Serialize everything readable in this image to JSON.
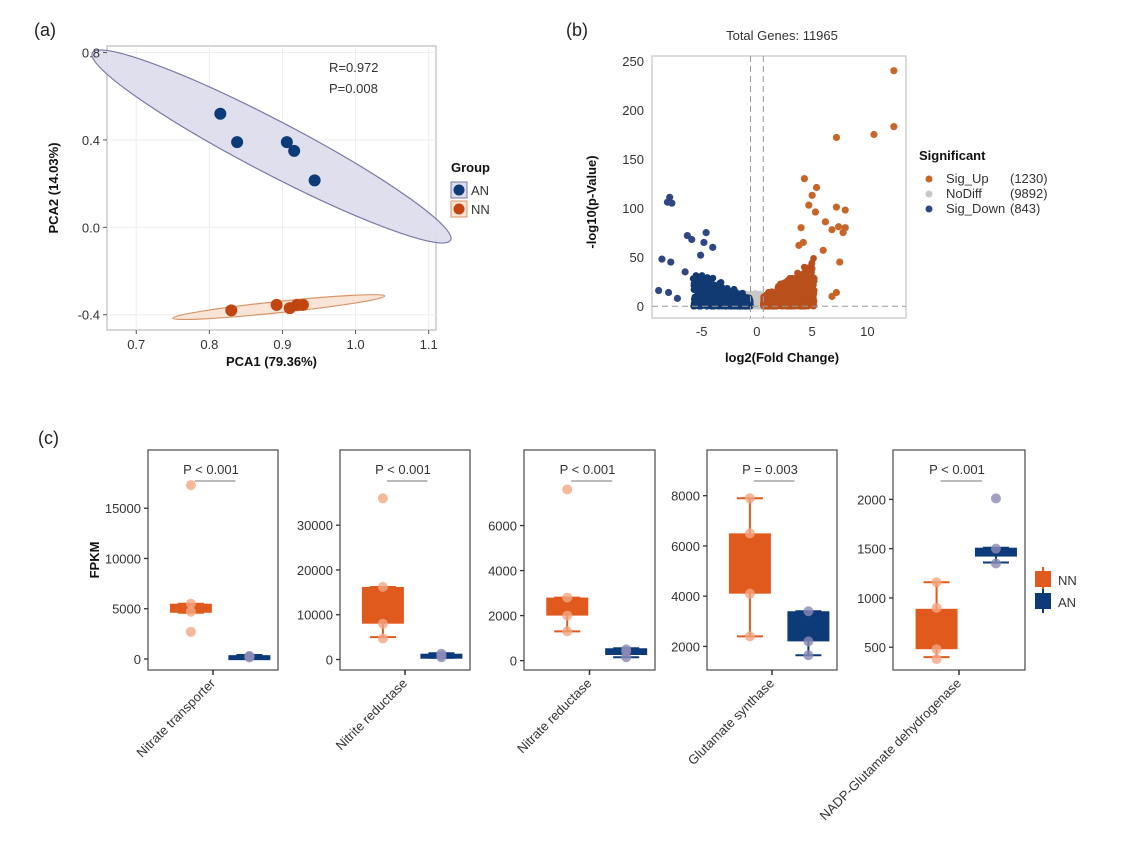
{
  "panels": {
    "a": "(a)",
    "b": "(b)",
    "c": "(c)"
  },
  "chart_data": [
    {
      "type": "scatter",
      "id": "pca",
      "title": "",
      "xlabel": "PCA1 (79.36%)",
      "ylabel": "PCA2 (14.03%)",
      "xlim": [
        0.66,
        1.11
      ],
      "ylim": [
        -0.47,
        0.83
      ],
      "xticks": [
        0.7,
        0.8,
        0.9,
        1.0,
        1.1
      ],
      "xtick_labels": [
        "0.7",
        "0.8",
        "0.9",
        "1.0",
        "1.1"
      ],
      "yticks": [
        -0.4,
        0.0,
        0.4,
        0.8
      ],
      "ytick_labels": [
        "-0.4",
        "0.0",
        "0.4",
        "0.8"
      ],
      "grid": true,
      "annotation": [
        "R=0.972",
        "P=0.008"
      ],
      "legend": {
        "title": "Group",
        "position": "right",
        "entries": [
          "AN",
          "NN"
        ]
      },
      "series": [
        {
          "name": "AN",
          "color": "#0d3a78",
          "fill": "#dcdcec",
          "stroke": "#7a7aa8",
          "points": [
            [
              0.815,
              0.52
            ],
            [
              0.838,
              0.39
            ],
            [
              0.906,
              0.39
            ],
            [
              0.916,
              0.35
            ],
            [
              0.944,
              0.215
            ]
          ],
          "ellipse": {
            "cx": 0.885,
            "cy": 0.37,
            "rx": 0.245,
            "ry": 0.038,
            "angle_data_slope": -1.75
          }
        },
        {
          "name": "NN",
          "color": "#c0450f",
          "fill": "#f7e2d4",
          "stroke": "#d9956a",
          "points": [
            [
              0.83,
              -0.38
            ],
            [
              0.892,
              -0.355
            ],
            [
              0.91,
              -0.37
            ],
            [
              0.92,
              -0.355
            ],
            [
              0.928,
              -0.355
            ]
          ],
          "ellipse": {
            "cx": 0.895,
            "cy": -0.365,
            "rx": 0.145,
            "ry": 0.012,
            "angle_data_slope": 0.35
          }
        }
      ]
    },
    {
      "type": "scatter",
      "id": "volcano",
      "title": "Total Genes: 11965",
      "xlabel": "log2(Fold Change)",
      "ylabel": "-log10(p-Value)",
      "xlim": [
        -9.5,
        13.5
      ],
      "ylim": [
        -12,
        255
      ],
      "xticks": [
        -5,
        0,
        5,
        10
      ],
      "xtick_labels": [
        "-5",
        "0",
        "5",
        "10"
      ],
      "yticks": [
        0,
        50,
        100,
        150,
        200,
        250
      ],
      "ytick_labels": [
        "0",
        "50",
        "100",
        "150",
        "200",
        "250"
      ],
      "thresholds": {
        "x": [
          -0.58,
          0.58
        ],
        "y": 0
      },
      "grid": false,
      "legend": {
        "title": "Significant",
        "position": "right",
        "entries": [
          {
            "label": "Sig_Up",
            "count": "(1230)",
            "color": "#c8662a"
          },
          {
            "label": "NoDiff",
            "count": "(9892)",
            "color": "#c8c8c8"
          },
          {
            "label": "Sig_Down",
            "count": "(843)",
            "color": "#2f4883"
          }
        ]
      },
      "highlight_points": {
        "up": [
          [
            12.4,
            240
          ],
          [
            12.4,
            183
          ],
          [
            10.6,
            175
          ],
          [
            7.2,
            172
          ],
          [
            4.3,
            130
          ],
          [
            5.4,
            121
          ],
          [
            5.0,
            113
          ],
          [
            4.7,
            103
          ],
          [
            7.2,
            101
          ],
          [
            8.0,
            98
          ],
          [
            5.3,
            96
          ],
          [
            6.2,
            86
          ],
          [
            6.8,
            78
          ],
          [
            7.4,
            81
          ],
          [
            8.0,
            80
          ],
          [
            7.8,
            75
          ],
          [
            4.0,
            80
          ],
          [
            4.2,
            65
          ],
          [
            3.8,
            62
          ],
          [
            6.0,
            57
          ],
          [
            7.5,
            45
          ],
          [
            7.2,
            14
          ],
          [
            6.8,
            10
          ]
        ],
        "down": [
          [
            -7.9,
            111
          ],
          [
            -8.1,
            106
          ],
          [
            -7.7,
            105
          ],
          [
            -6.3,
            72
          ],
          [
            -5.9,
            68
          ],
          [
            -4.6,
            75
          ],
          [
            -4.8,
            65
          ],
          [
            -4.0,
            60
          ],
          [
            -8.6,
            48
          ],
          [
            -7.8,
            45
          ],
          [
            -6.5,
            35
          ],
          [
            -5.1,
            52
          ],
          [
            -8.9,
            16
          ],
          [
            -8.0,
            14
          ],
          [
            -7.2,
            8
          ]
        ]
      }
    },
    {
      "type": "box",
      "id": "fpkm",
      "ylabel": "FPKM",
      "legend": {
        "position": "right",
        "entries": [
          {
            "name": "NN",
            "color": "#e05a1e"
          },
          {
            "name": "AN",
            "color": "#0d3a78"
          }
        ]
      },
      "groups": [
        "NN",
        "AN"
      ],
      "facets": [
        {
          "label": "Nitrate transporter",
          "p": "P < 0.001",
          "ylim": [
            -500,
            20000
          ],
          "yticks": [
            0,
            5000,
            10000,
            15000
          ],
          "ytick_labels": [
            "0",
            "5000",
            "10000",
            "15000"
          ],
          "NN": {
            "q1": 4600,
            "median": 5000,
            "q3": 5500,
            "whisk_lo": 4600,
            "whisk_hi": 5500,
            "points": [
              17300,
              5500,
              4700,
              2700
            ]
          },
          "AN": {
            "q1": 120,
            "median": 250,
            "q3": 380,
            "whisk_lo": 100,
            "whisk_hi": 400,
            "points": [
              150,
              250,
              300
            ]
          }
        },
        {
          "label": "Nitrite reductase",
          "p": "P < 0.001",
          "ylim": [
            -1000,
            45000
          ],
          "yticks": [
            0,
            10000,
            20000,
            30000
          ],
          "ytick_labels": [
            "0",
            "10000",
            "20000",
            "30000"
          ],
          "NN": {
            "q1": 8000,
            "median": 12000,
            "q3": 16200,
            "whisk_lo": 5000,
            "whisk_hi": 16200,
            "points": [
              36000,
              16200,
              8000,
              4700
            ]
          },
          "AN": {
            "q1": 500,
            "median": 800,
            "q3": 1300,
            "whisk_lo": 400,
            "whisk_hi": 1400,
            "points": [
              500,
              900,
              1300
            ]
          }
        },
        {
          "label": "Nitrate reductase",
          "p": "P < 0.001",
          "ylim": [
            -150,
            9000
          ],
          "yticks": [
            0,
            2000,
            4000,
            6000
          ],
          "ytick_labels": [
            "0",
            "2000",
            "4000",
            "6000"
          ],
          "NN": {
            "q1": 2000,
            "median": 2400,
            "q3": 2800,
            "whisk_lo": 1300,
            "whisk_hi": 2800,
            "points": [
              7600,
              2800,
              2000,
              1300
            ]
          },
          "AN": {
            "q1": 250,
            "median": 350,
            "q3": 550,
            "whisk_lo": 150,
            "whisk_hi": 550,
            "points": [
              150,
              400,
              500
            ]
          }
        },
        {
          "label": "Glutamate synthase",
          "p": "P = 0.003",
          "ylim": [
            1300,
            9500
          ],
          "yticks": [
            2000,
            4000,
            6000,
            8000
          ],
          "ytick_labels": [
            "2000",
            "4000",
            "6000",
            "8000"
          ],
          "NN": {
            "q1": 4100,
            "median": 5000,
            "q3": 6500,
            "whisk_lo": 2400,
            "whisk_hi": 7900,
            "points": [
              7900,
              6500,
              4100,
              2400
            ]
          },
          "AN": {
            "q1": 2200,
            "median": 2800,
            "q3": 3400,
            "whisk_lo": 1650,
            "whisk_hi": 3400,
            "points": [
              3400,
              2200,
              1650
            ]
          }
        },
        {
          "label": "NADP-Glutamate dehydrogenase",
          "p": "P < 0.001",
          "ylim": [
            330,
            2420
          ],
          "yticks": [
            500,
            1000,
            1500,
            2000
          ],
          "ytick_labels": [
            "500",
            "1000",
            "1500",
            "2000"
          ],
          "NN": {
            "q1": 480,
            "median": 700,
            "q3": 890,
            "whisk_lo": 400,
            "whisk_hi": 1160,
            "points": [
              1160,
              900,
              480,
              380
            ]
          },
          "AN": {
            "q1": 1420,
            "median": 1460,
            "q3": 1510,
            "whisk_lo": 1360,
            "whisk_hi": 1510,
            "points": [
              2010,
              1500,
              1350
            ]
          }
        }
      ]
    }
  ]
}
